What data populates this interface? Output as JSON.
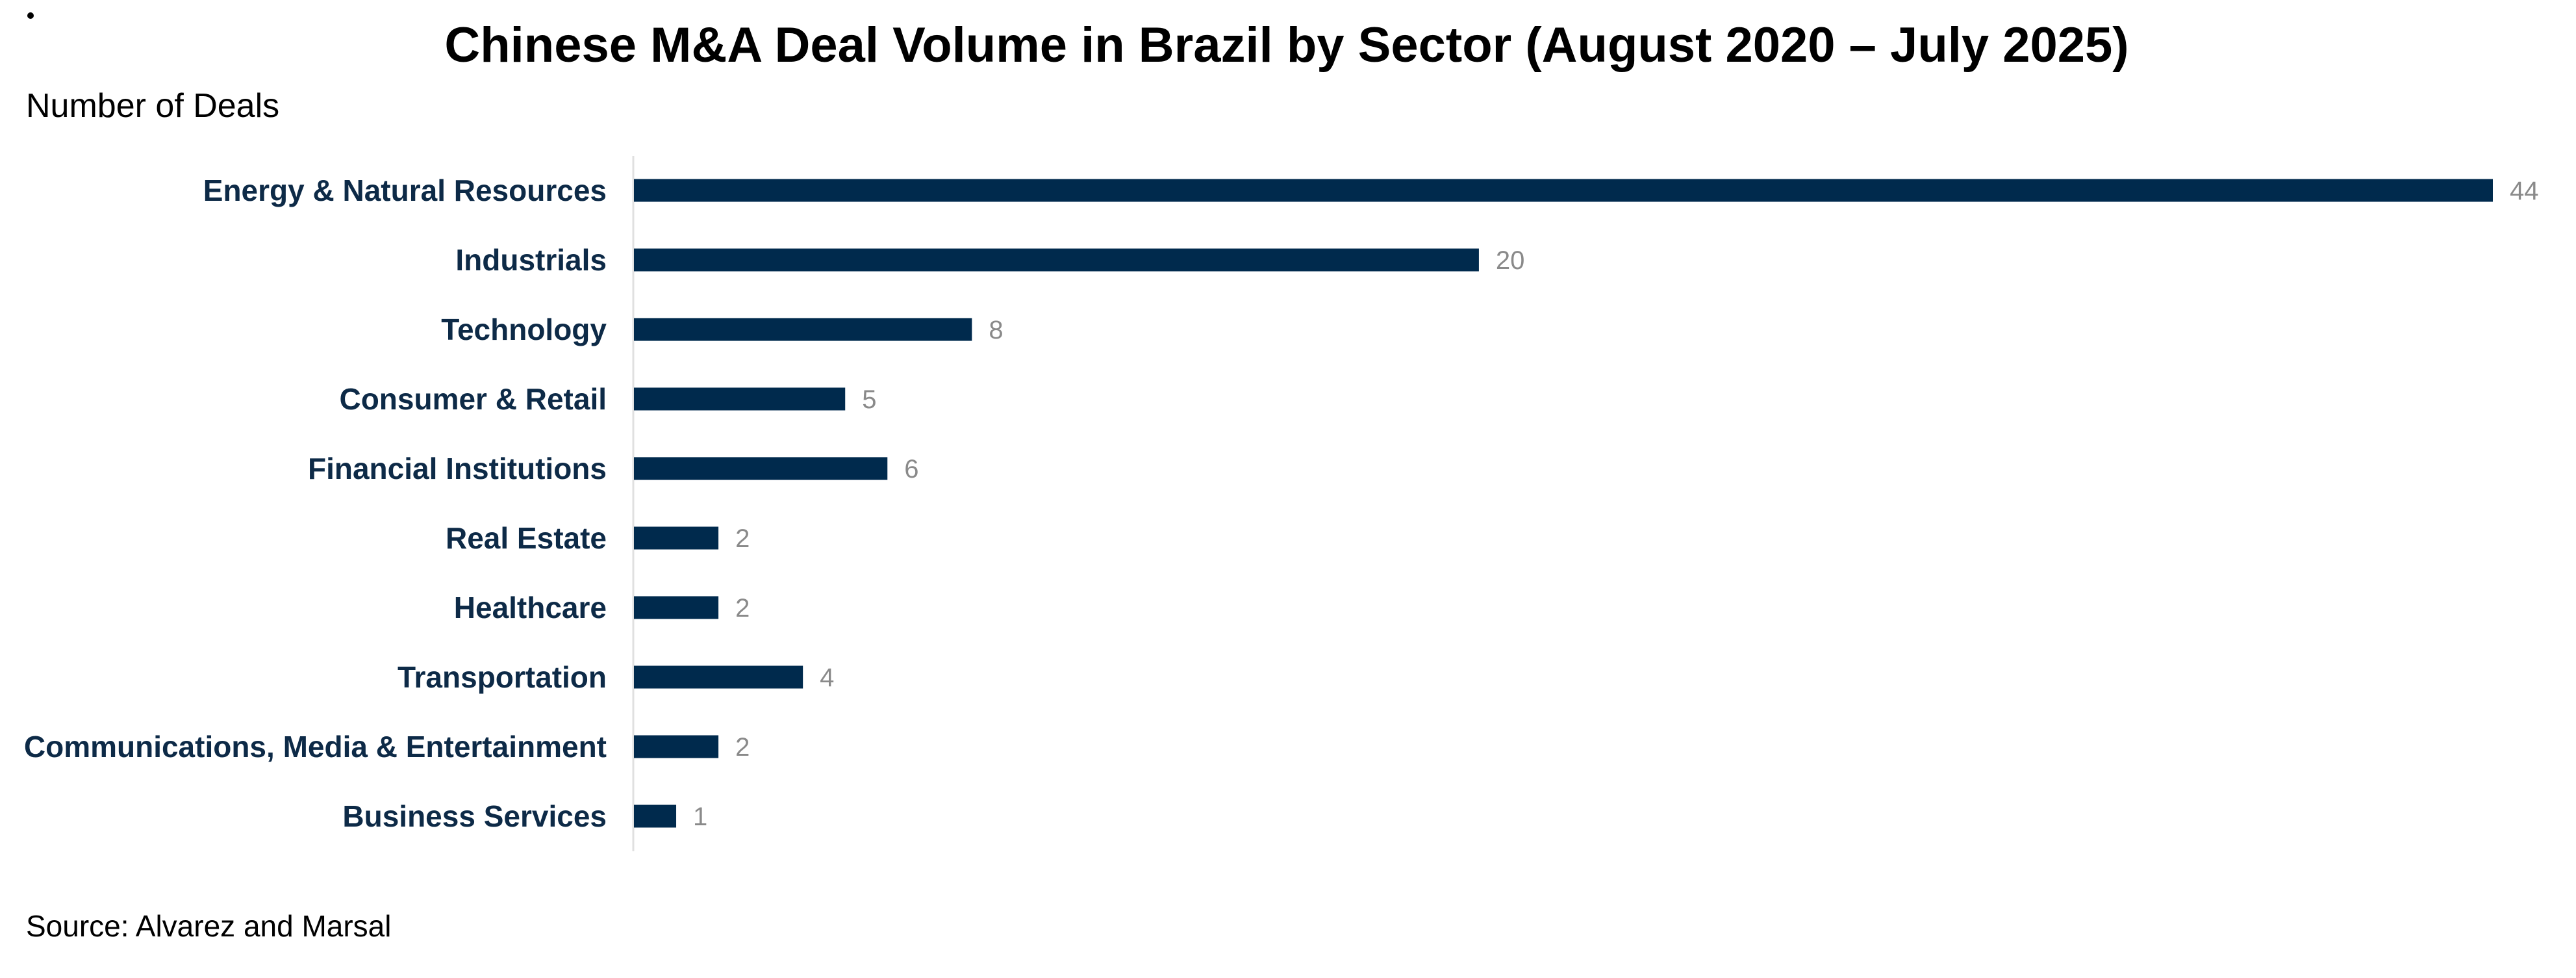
{
  "chart_data": {
    "type": "bar",
    "orientation": "horizontal",
    "title": "Chinese M&A Deal Volume in Brazil by Sector (August 2020 – July 2025)",
    "ylabel": "Number of Deals",
    "xlabel": "",
    "source": "Source: Alvarez and Marsal",
    "categories": [
      "Energy & Natural Resources",
      "Industrials",
      "Technology",
      "Consumer & Retail",
      "Financial Institutions",
      "Real Estate",
      "Healthcare",
      "Transportation",
      "Communications, Media & Entertainment",
      "Business Services"
    ],
    "values": [
      44,
      20,
      8,
      5,
      6,
      2,
      2,
      4,
      2,
      1
    ],
    "xlim": [
      0,
      44
    ],
    "grid": false,
    "legend": "none",
    "colors": {
      "bar": "#002a4d",
      "category_label": "#0d2a47",
      "value_label": "#8a8a8a",
      "axis_line": "#e0e0e0"
    }
  }
}
